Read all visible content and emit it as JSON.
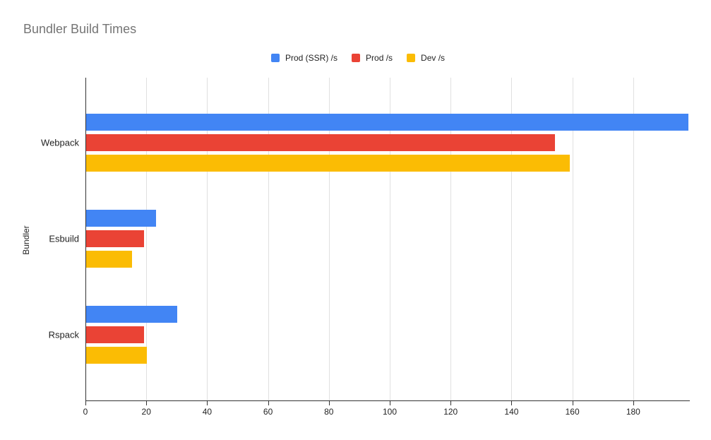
{
  "chart_data": {
    "type": "bar",
    "orientation": "horizontal",
    "title": "Bundler Build Times",
    "xlabel": "",
    "ylabel": "Bundler",
    "categories": [
      "Webpack",
      "Esbuild",
      "Rspack"
    ],
    "series": [
      {
        "name": "Prod (SSR) /s",
        "color": "#4285F4",
        "values": [
          198,
          23,
          30
        ]
      },
      {
        "name": "Prod /s",
        "color": "#EA4335",
        "values": [
          154,
          19,
          19
        ]
      },
      {
        "name": "Dev /s",
        "color": "#FBBC04",
        "values": [
          159,
          15,
          20
        ]
      }
    ],
    "x_ticks": [
      0,
      20,
      40,
      60,
      80,
      100,
      120,
      140,
      160,
      180
    ],
    "xlim": [
      0,
      198.6
    ],
    "grid": "vertical",
    "legend_position": "top"
  },
  "colors": {
    "title_text": "#757575",
    "axis_text": "#232323",
    "gridline": "#e0e0e0",
    "axis_line": "#333333",
    "background": "#ffffff"
  }
}
